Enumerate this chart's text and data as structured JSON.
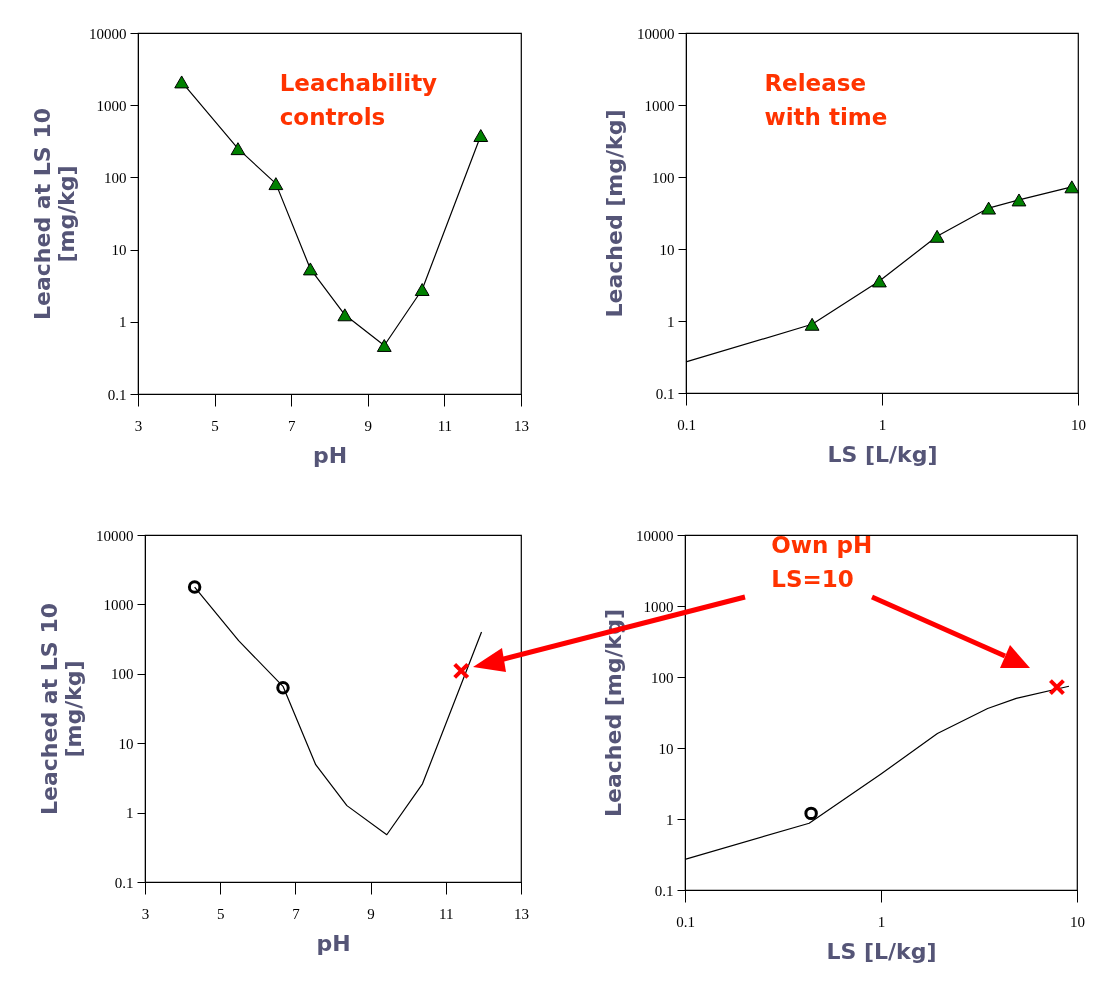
{
  "chart_data": [
    {
      "type": "line",
      "xlabel": "pH",
      "ylabel": "Leached at LS 10\n[mg/kg]",
      "xlim": [
        3,
        13
      ],
      "xticks": [
        3,
        5,
        7,
        9,
        11,
        13
      ],
      "ylim": [
        0.1,
        10000
      ],
      "yticks": [
        0.1,
        1,
        10,
        100,
        1000,
        10000
      ],
      "log": "y",
      "annotations": [
        "Leachability\ncontrols"
      ],
      "series": [
        {
          "type": "line",
          "color": "#000000",
          "marker": "none",
          "x": [
            4.14,
            5.61,
            6.6,
            7.5,
            8.4,
            9.43,
            10.42,
            11.95
          ],
          "values": [
            2100,
            250,
            82,
            5.4,
            1.25,
            0.47,
            2.8,
            380
          ]
        },
        {
          "type": "scatter",
          "color": "#008000",
          "marker": "triangle",
          "x": [
            4.14,
            5.61,
            6.6,
            7.5,
            8.4,
            9.43,
            10.42,
            11.95
          ],
          "values": [
            2100,
            250,
            82,
            5.4,
            1.25,
            0.47,
            2.8,
            380
          ]
        }
      ]
    },
    {
      "type": "line",
      "xlabel": "LS [L/kg]",
      "ylabel": "Leached [mg/kg]",
      "xlim": [
        0.1,
        10
      ],
      "xticks": [
        0.1,
        1,
        10
      ],
      "ylim": [
        0.1,
        10000
      ],
      "yticks": [
        0.1,
        1,
        10,
        100,
        1000,
        10000
      ],
      "log": "xy",
      "annotations": [
        "Release\nwith time"
      ],
      "series": [
        {
          "type": "line",
          "color": "#000000",
          "marker": "none",
          "x": [
            0.1,
            0.44,
            0.97,
            1.91,
            3.5,
            5.0,
            9.3
          ],
          "values": [
            0.27,
            0.9,
            3.6,
            15,
            37,
            48,
            73
          ]
        },
        {
          "type": "scatter",
          "color": "#008000",
          "marker": "triangle",
          "x": [
            0.44,
            0.97,
            1.91,
            3.5,
            5.0,
            9.3
          ],
          "values": [
            0.9,
            3.6,
            15,
            37,
            48,
            73
          ]
        }
      ]
    },
    {
      "type": "line",
      "xlabel": "pH",
      "ylabel": "Leached at LS 10\n[mg/kg]",
      "xlim": [
        3,
        13
      ],
      "xticks": [
        3,
        5,
        7,
        9,
        11,
        13
      ],
      "ylim": [
        0.1,
        10000
      ],
      "yticks": [
        0.1,
        1,
        10,
        100,
        1000,
        10000
      ],
      "log": "y",
      "series": [
        {
          "type": "line",
          "color": "#000000",
          "marker": "none",
          "x": [
            4.32,
            5.49,
            6.67,
            7.54,
            8.37,
            9.43,
            10.38,
            11.95
          ],
          "values": [
            1780,
            300,
            66,
            4.9,
            1.26,
            0.48,
            2.6,
            400
          ]
        },
        {
          "type": "scatter",
          "color": "#000000",
          "marker": "circle",
          "x": [
            4.32,
            6.67
          ],
          "values": [
            1780,
            63
          ]
        },
        {
          "type": "scatter",
          "color": "#ff0000",
          "marker": "cross",
          "x": [
            11.41
          ],
          "values": [
            110
          ]
        }
      ]
    },
    {
      "type": "line",
      "xlabel": "LS [L/kg]",
      "ylabel": "Leached [mg/kg]",
      "xlim": [
        0.1,
        10
      ],
      "xticks": [
        0.1,
        1,
        10
      ],
      "ylim": [
        0.1,
        10000
      ],
      "yticks": [
        0.1,
        1,
        10,
        100,
        1000,
        10000
      ],
      "log": "xy",
      "annotations": [
        "Own pH\nLS=10"
      ],
      "series": [
        {
          "type": "line",
          "color": "#000000",
          "marker": "none",
          "x": [
            0.1,
            0.43,
            1.0,
            1.94,
            3.5,
            4.9,
            9.1
          ],
          "values": [
            0.27,
            0.87,
            4.3,
            16,
            36,
            50,
            74
          ]
        },
        {
          "type": "scatter",
          "color": "#000000",
          "marker": "circle",
          "x": [
            0.44
          ],
          "values": [
            1.2
          ]
        },
        {
          "type": "scatter",
          "color": "#ff0000",
          "marker": "cross",
          "x": [
            7.9
          ],
          "values": [
            72
          ]
        }
      ]
    }
  ]
}
